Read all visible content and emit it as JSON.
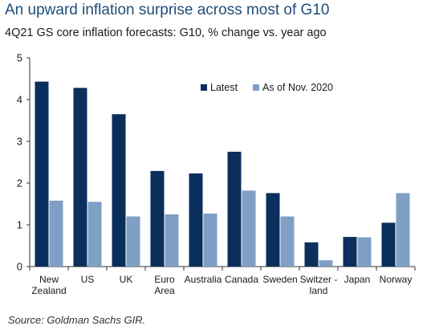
{
  "title": "An upward inflation surprise across most of G10",
  "subtitle": "4Q21 GS core inflation forecasts: G10, % change vs. year ago",
  "source": "Source: Goldman Sachs GIR.",
  "chart_data": {
    "type": "bar",
    "categories": [
      [
        "New",
        "Zealand"
      ],
      [
        "US"
      ],
      [
        "UK"
      ],
      [
        "Euro",
        "Area"
      ],
      [
        "Australia"
      ],
      [
        "Canada"
      ],
      [
        "Sweden"
      ],
      [
        "Switzer -",
        "land"
      ],
      [
        "Japan"
      ],
      [
        "Norway"
      ]
    ],
    "series": [
      {
        "name": "Latest",
        "color": "#0b2f5c",
        "values": [
          4.43,
          4.28,
          3.65,
          2.29,
          2.23,
          2.75,
          1.76,
          0.58,
          0.71,
          1.05
        ]
      },
      {
        "name": "As of Nov. 2020",
        "color": "#7f9fc4",
        "values": [
          1.58,
          1.55,
          1.2,
          1.25,
          1.27,
          1.82,
          1.2,
          0.15,
          0.7,
          1.76
        ]
      }
    ],
    "ylim": [
      0,
      5
    ],
    "yticks": [
      0,
      1,
      2,
      3,
      4,
      5
    ],
    "legend_position": "top-right",
    "grid": false
  }
}
